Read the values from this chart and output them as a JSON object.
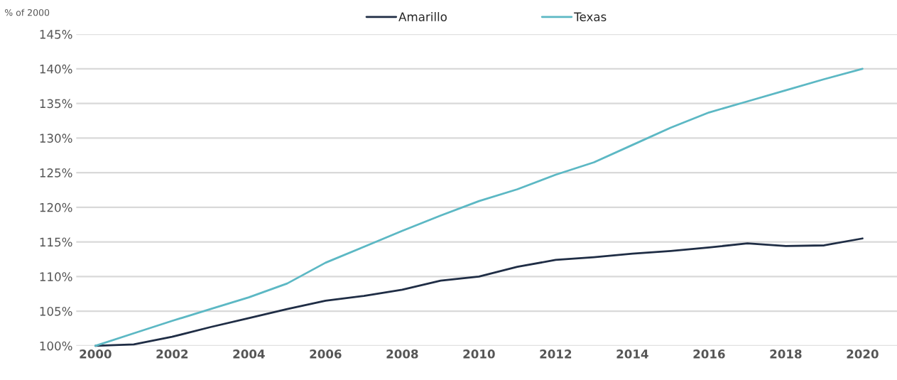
{
  "chart_data": {
    "type": "line",
    "ylabel": "% of 2000",
    "x": [
      2000,
      2001,
      2002,
      2003,
      2004,
      2005,
      2006,
      2007,
      2008,
      2009,
      2010,
      2011,
      2012,
      2013,
      2014,
      2015,
      2016,
      2017,
      2018,
      2019,
      2020
    ],
    "series": [
      {
        "name": "Amarillo",
        "color": "#1f2d45",
        "values": [
          100,
          100.2,
          101.3,
          102.7,
          104,
          105.3,
          106.5,
          107.2,
          108.1,
          109.4,
          110,
          111.4,
          112.4,
          112.8,
          113.3,
          113.7,
          114.2,
          114.8,
          114.4,
          114.5,
          115.5
        ]
      },
      {
        "name": "Texas",
        "color": "#5cb8c4",
        "values": [
          100,
          101.8,
          103.6,
          105.3,
          107,
          109,
          112,
          114.3,
          116.6,
          118.8,
          120.9,
          122.6,
          124.7,
          126.5,
          129,
          131.5,
          133.7,
          135.3,
          136.9,
          138.5,
          140
        ]
      }
    ],
    "xlim": [
      1999.5,
      2020.9
    ],
    "xticks": [
      2000,
      2002,
      2004,
      2006,
      2008,
      2010,
      2012,
      2014,
      2016,
      2018,
      2020
    ],
    "ylim": [
      100,
      145
    ],
    "yticks": [
      {
        "value": 100,
        "label": "100%"
      },
      {
        "value": 105,
        "label": "105%"
      },
      {
        "value": 110,
        "label": "110%"
      },
      {
        "value": 115,
        "label": "115%"
      },
      {
        "value": 120,
        "label": "120%"
      },
      {
        "value": 125,
        "label": "125%"
      },
      {
        "value": 130,
        "label": "130%"
      },
      {
        "value": 135,
        "label": "135%"
      },
      {
        "value": 140,
        "label": "140%"
      },
      {
        "value": 145,
        "label": "145%"
      }
    ],
    "grid": "y",
    "legend": "top",
    "marker": "none",
    "line_style": "solid"
  }
}
